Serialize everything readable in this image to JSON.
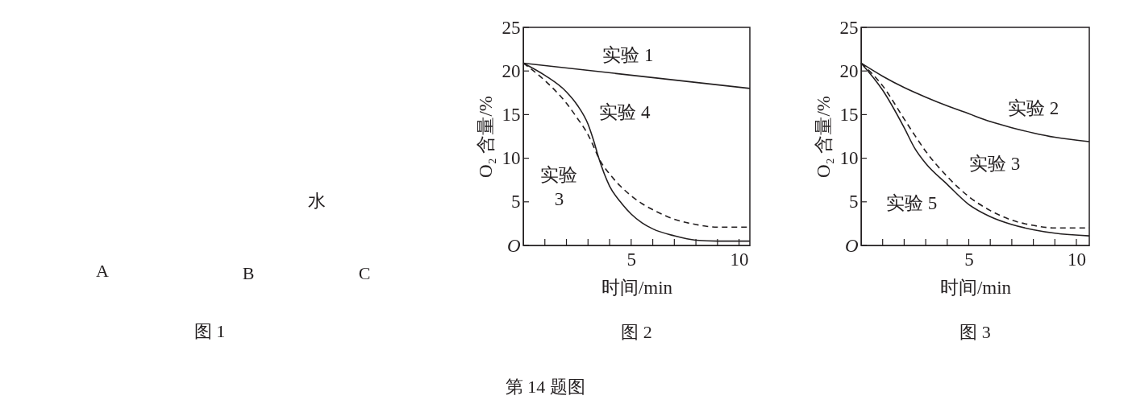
{
  "chart_data": [
    {
      "type": "other",
      "title": "图 1",
      "annotations": [
        "A",
        "B",
        "C",
        "水",
        "第 14 题图"
      ]
    },
    {
      "type": "line",
      "title": "图 2",
      "xlabel": "时间/min",
      "ylabel": "O₂ 含量/%",
      "xlim": [
        0,
        10.5
      ],
      "ylim": [
        0,
        25
      ],
      "xticks": [
        {
          "value": 1,
          "label": null
        },
        {
          "value": 2,
          "label": null
        },
        {
          "value": 3,
          "label": null
        },
        {
          "value": 4,
          "label": null
        },
        5,
        {
          "value": 6,
          "label": null
        },
        {
          "value": 7,
          "label": null
        },
        {
          "value": 8,
          "label": null
        },
        {
          "value": 9,
          "label": null
        },
        10
      ],
      "yticks": [
        {
          "value": 0,
          "label": "O"
        },
        5,
        10,
        15,
        20,
        25
      ],
      "grid": false,
      "x": [
        0,
        1,
        2,
        2.5,
        3,
        3.25,
        3.5,
        4,
        4.5,
        5,
        5.5,
        6,
        7,
        8,
        9,
        10.5
      ],
      "series": [
        {
          "name": "实验 1",
          "color": "#231f20",
          "line_style": "solid",
          "x": [
            0,
            10.5
          ],
          "values": [
            20.9,
            18.0
          ]
        },
        {
          "name": "实验 4",
          "color": "#231f20",
          "line_style": "solid",
          "values": [
            20.9,
            19.5,
            17.6,
            16.1,
            13.9,
            12.1,
            10.0,
            6.8,
            5.0,
            3.6,
            2.6,
            1.9,
            1.1,
            0.6,
            0.5,
            0.5
          ]
        },
        {
          "name": "实验 3",
          "color": "#231f20",
          "line_style": "dashed",
          "values": [
            20.9,
            18.9,
            16.3,
            14.6,
            12.7,
            11.4,
            10.0,
            8.2,
            6.8,
            5.7,
            4.8,
            4.1,
            3.0,
            2.4,
            2.1,
            2.1
          ]
        }
      ]
    },
    {
      "type": "line",
      "title": "图 3",
      "xlabel": "时间/min",
      "ylabel": "O₂ 含量/%",
      "xlim": [
        0,
        10.6
      ],
      "ylim": [
        0,
        25
      ],
      "xticks": [
        {
          "value": 1,
          "label": null
        },
        {
          "value": 2,
          "label": null
        },
        {
          "value": 3,
          "label": null
        },
        {
          "value": 4,
          "label": null
        },
        5,
        {
          "value": 6,
          "label": null
        },
        {
          "value": 7,
          "label": null
        },
        {
          "value": 8,
          "label": null
        },
        {
          "value": 9,
          "label": null
        },
        10
      ],
      "yticks": [
        {
          "value": 0,
          "label": "O"
        },
        5,
        10,
        15,
        20,
        25
      ],
      "grid": false,
      "x": [
        0,
        1,
        2,
        2.5,
        3,
        4,
        5,
        6,
        7,
        8,
        9,
        10.6
      ],
      "series": [
        {
          "name": "实验 2",
          "color": "#231f20",
          "line_style": "solid",
          "x": [
            0,
            1,
            2,
            3,
            4,
            5,
            6,
            7,
            8,
            9,
            10.6
          ],
          "values": [
            20.9,
            19.4,
            18.1,
            17.0,
            16.0,
            15.1,
            14.2,
            13.5,
            12.9,
            12.4,
            11.9
          ]
        },
        {
          "name": "实验 3",
          "color": "#231f20",
          "line_style": "dashed",
          "values": [
            20.9,
            18.3,
            14.5,
            12.6,
            10.8,
            7.9,
            5.6,
            4.0,
            2.9,
            2.3,
            2.0,
            2.0
          ]
        },
        {
          "name": "实验 5",
          "color": "#231f20",
          "line_style": "solid",
          "values": [
            20.9,
            17.8,
            13.5,
            11.1,
            9.4,
            7.0,
            4.7,
            3.3,
            2.4,
            1.8,
            1.4,
            1.1
          ]
        }
      ]
    }
  ]
}
